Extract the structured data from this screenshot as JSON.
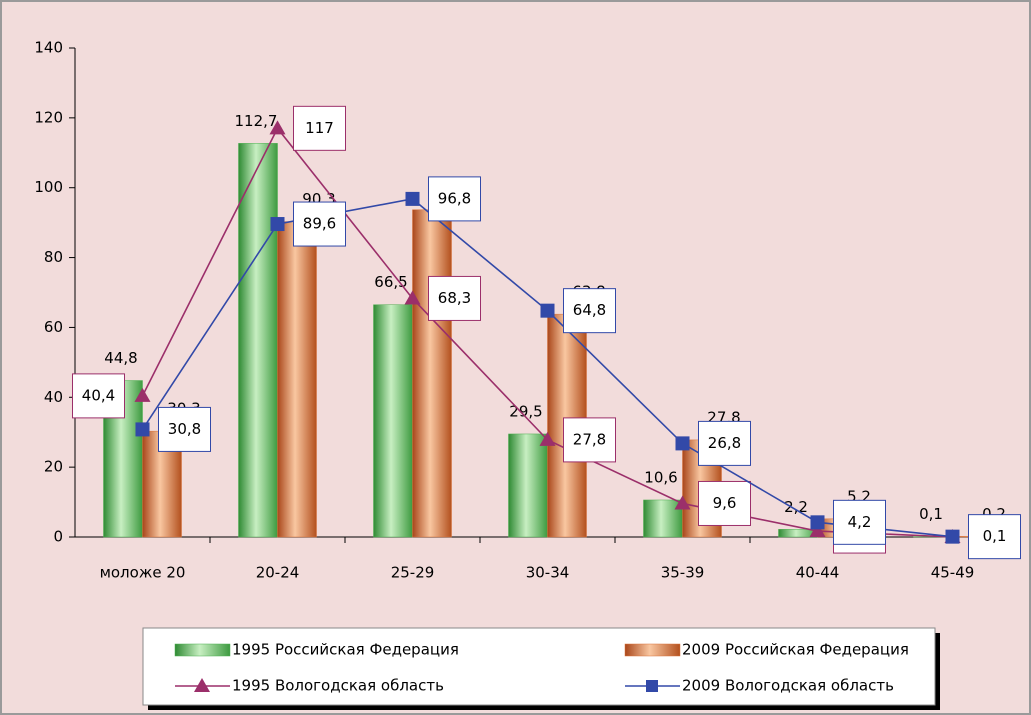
{
  "chart_data": {
    "type": "bar-line",
    "categories": [
      "моложе 20",
      "20-24",
      "25-29",
      "30-34",
      "35-39",
      "40-44",
      "45-49"
    ],
    "series": [
      {
        "name": "1995 Российская Федерация",
        "kind": "bar",
        "color": "#4caf50",
        "values": [
          44.8,
          112.7,
          66.5,
          29.5,
          10.6,
          2.2,
          0.1
        ],
        "value_labels": [
          "44,8",
          "112,7",
          "66,5",
          "29,5",
          "10,6",
          "2,2",
          "0,1"
        ]
      },
      {
        "name": "2009 Российская Федерация",
        "kind": "bar",
        "color": "#d9733a",
        "values": [
          30.3,
          90.3,
          93.7,
          63.8,
          27.8,
          5.2,
          0.2
        ],
        "value_labels": [
          "30,3",
          "90,3",
          "93,7",
          "63,8",
          "27,8",
          "5,2",
          "0,2"
        ]
      },
      {
        "name": "1995 Вологодская область",
        "kind": "line",
        "marker": "triangle",
        "color": "#9b2f6a",
        "values": [
          40.4,
          117,
          68.3,
          27.8,
          9.6,
          1.7,
          0
        ],
        "value_labels": [
          "40,4",
          "117",
          "68,3",
          "27,8",
          "9,6",
          "1,7",
          null
        ]
      },
      {
        "name": "2009 Вологодская область",
        "kind": "line",
        "marker": "square",
        "color": "#3249a8",
        "values": [
          30.8,
          89.6,
          96.8,
          64.8,
          26.8,
          4.2,
          0.1
        ],
        "value_labels": [
          "30,8",
          "89,6",
          "96,8",
          "64,8",
          "26,8",
          "4,2",
          "0,1"
        ]
      }
    ],
    "ylim": [
      0,
      140
    ],
    "yticks": [
      0,
      20,
      40,
      60,
      80,
      100,
      120,
      140
    ],
    "grid": false,
    "legend": "bottom"
  }
}
